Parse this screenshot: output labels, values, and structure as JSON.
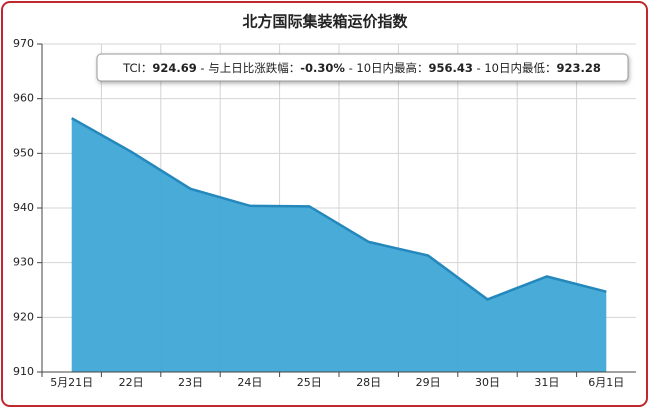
{
  "chart_data": {
    "type": "area",
    "title": "北方国际集装箱运价指数",
    "categories": [
      "5月21日",
      "22日",
      "23日",
      "24日",
      "25日",
      "28日",
      "29日",
      "30日",
      "31日",
      "6月1日"
    ],
    "values": [
      956.43,
      950.3,
      943.5,
      940.4,
      940.3,
      933.8,
      931.3,
      923.28,
      927.47,
      924.69
    ],
    "color": "#3fa7d6",
    "line_color": "#2588bd",
    "ylim": [
      910,
      970
    ],
    "yticks": [
      910,
      920,
      930,
      940,
      950,
      960,
      970
    ],
    "grid": true,
    "annotation": [
      {
        "label": "TCI：",
        "value": "924.69"
      },
      {
        "label": " - 与上日比涨跌幅：",
        "value": "-0.30%"
      },
      {
        "label": " - 10日内最高：",
        "value": "956.43"
      },
      {
        "label": " - 10日内最低：",
        "value": "923.28"
      }
    ]
  }
}
